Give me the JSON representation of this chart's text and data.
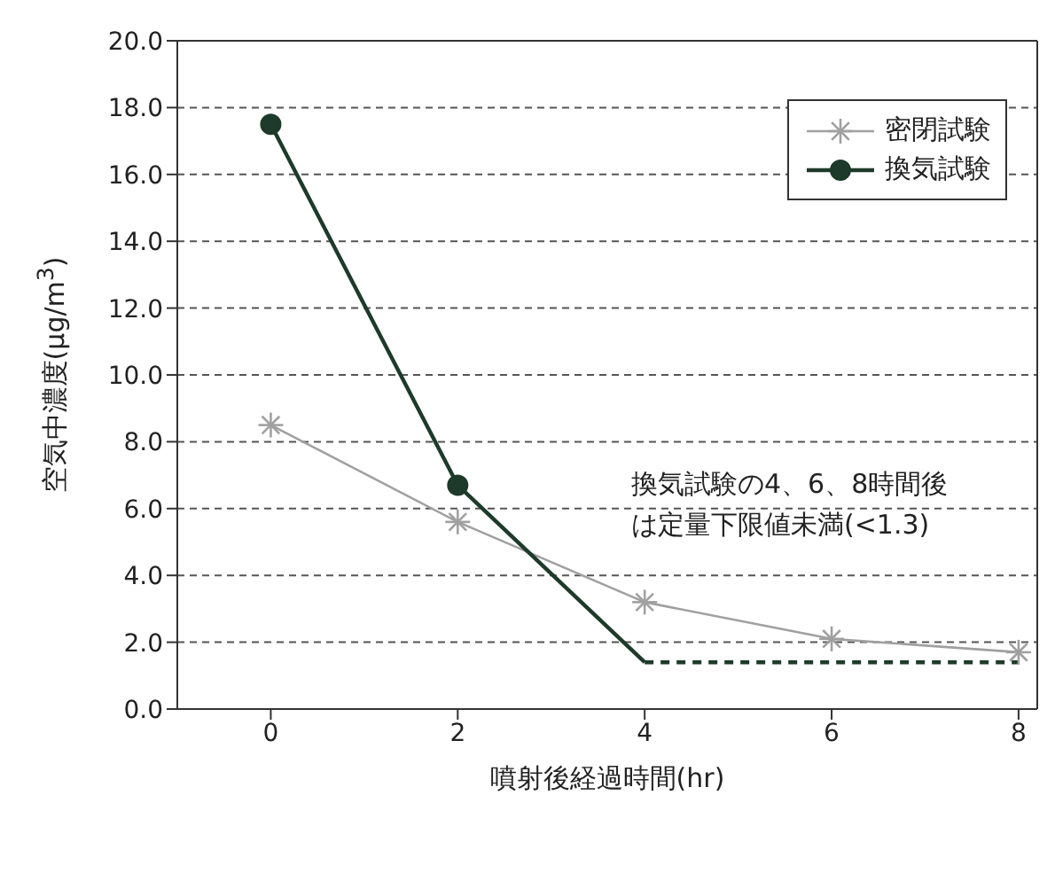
{
  "chart_data": {
    "type": "line",
    "xlabel": "噴射後経過時間(hr)",
    "ylabel": "空気中濃度(μg/m$^{3}$)",
    "xlim": [
      -1,
      8.2
    ],
    "xticks": [
      0,
      2,
      4,
      6,
      8
    ],
    "ylim": [
      0,
      20
    ],
    "yticks": [
      {
        "value": 0,
        "label": "0.0"
      },
      {
        "value": 2,
        "label": "2.0"
      },
      {
        "value": 4,
        "label": "4.0"
      },
      {
        "value": 6,
        "label": "6.0"
      },
      {
        "value": 8,
        "label": "8.0"
      },
      {
        "value": 10,
        "label": "10.0"
      },
      {
        "value": 12,
        "label": "12.0"
      },
      {
        "value": 14,
        "label": "14.0"
      },
      {
        "value": 16,
        "label": "16.0"
      },
      {
        "value": 18,
        "label": "18.0"
      },
      {
        "value": 20,
        "label": "20.0"
      }
    ],
    "grid": "y",
    "legend": "top right",
    "series": [
      {
        "name": "密閉試験",
        "color": "#a0a0a0",
        "x": [
          0,
          2,
          4,
          6,
          8
        ],
        "values": [
          8.5,
          5.6,
          3.2,
          2.1,
          1.7
        ],
        "marker": "cross",
        "line_style": "solid"
      },
      {
        "name": "換気試験",
        "color": "#1e3a2a",
        "x": [
          0,
          2
        ],
        "values": [
          17.5,
          6.7
        ],
        "marker": "circle",
        "line_style": "solid"
      },
      {
        "color": "#1e3a2a",
        "x": [
          2,
          4
        ],
        "values": [
          6.7,
          1.4
        ],
        "marker": "none",
        "line_style": "solid"
      },
      {
        "color": "#1e3a2a",
        "x": [
          4,
          6,
          8
        ],
        "values": [
          1.4,
          1.4,
          1.4
        ],
        "marker": "none",
        "line_style": "dashed"
      }
    ],
    "annotations": [
      "換気試験の4、6、8時間後",
      "は定量下限値未満(<1.3)"
    ]
  }
}
